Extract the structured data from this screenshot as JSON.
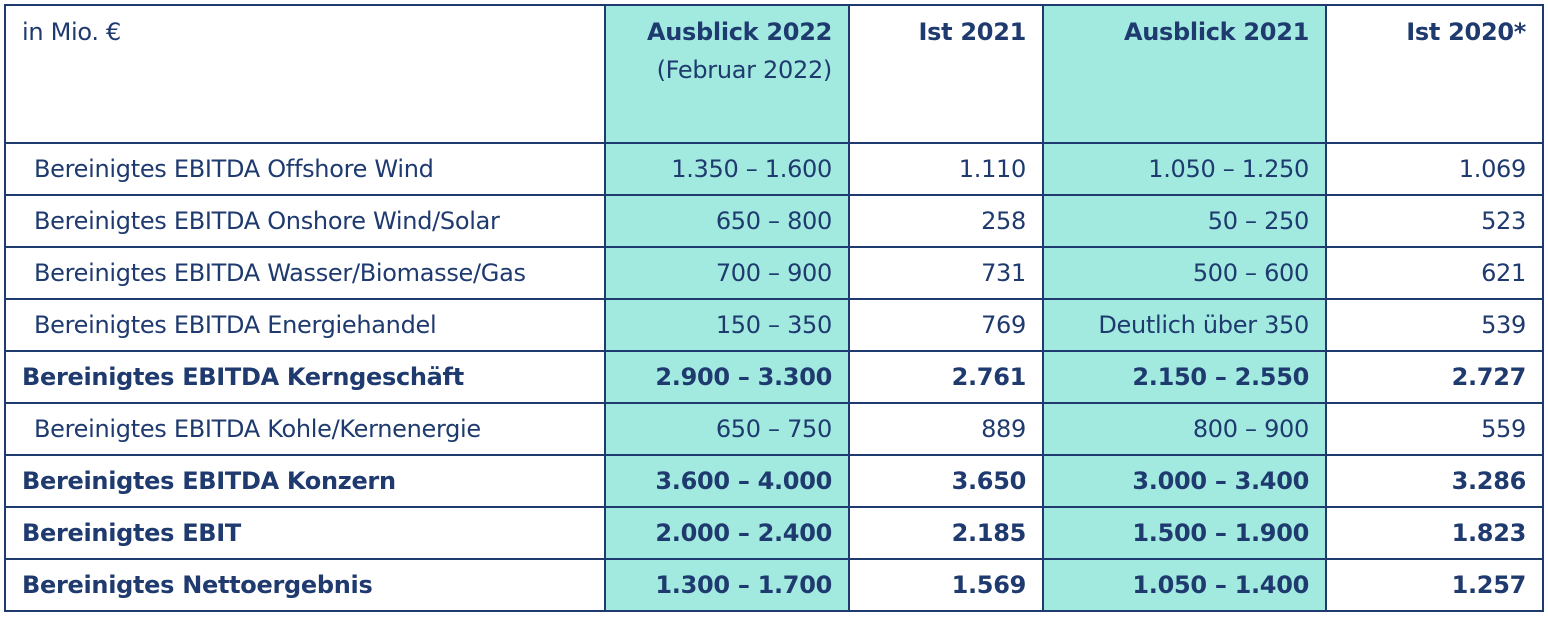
{
  "table": {
    "columns": [
      {
        "title": "in Mio. €"
      },
      {
        "title": "Ausblick 2022",
        "subtitle": "(Februar 2022)",
        "highlight": true
      },
      {
        "title": "Ist 2021"
      },
      {
        "title": "Ausblick 2021",
        "highlight": true
      },
      {
        "title": "Ist 2020*"
      }
    ],
    "rows": [
      {
        "label": "Bereinigtes EBITDA Offshore Wind",
        "cells": [
          "1.350 – 1.600",
          "1.110",
          "1.050 – 1.250",
          "1.069"
        ],
        "bold": false
      },
      {
        "label": "Bereinigtes EBITDA Onshore Wind/Solar",
        "cells": [
          "650 – 800",
          "258",
          "50 – 250",
          "523"
        ],
        "bold": false
      },
      {
        "label": "Bereinigtes EBITDA Wasser/Biomasse/Gas",
        "cells": [
          "700 – 900",
          "731",
          "500 – 600",
          "621"
        ],
        "bold": false
      },
      {
        "label": "Bereinigtes EBITDA Energiehandel",
        "cells": [
          "150 – 350",
          "769",
          "Deutlich über 350",
          "539"
        ],
        "bold": false
      },
      {
        "label": "Bereinigtes EBITDA Kerngeschäft",
        "cells": [
          "2.900 – 3.300",
          "2.761",
          "2.150 – 2.550",
          "2.727"
        ],
        "bold": true
      },
      {
        "label": "Bereinigtes EBITDA Kohle/Kernenergie",
        "cells": [
          "650 – 750",
          "889",
          "800 – 900",
          "559"
        ],
        "bold": false
      },
      {
        "label": "Bereinigtes EBITDA Konzern",
        "cells": [
          "3.600 – 4.000",
          "3.650",
          "3.000 – 3.400",
          "3.286"
        ],
        "bold": true
      },
      {
        "label": "Bereinigtes EBIT",
        "cells": [
          "2.000 – 2.400",
          "2.185",
          "1.500 – 1.900",
          "1.823"
        ],
        "bold": true
      },
      {
        "label": "Bereinigtes Nettoergebnis",
        "cells": [
          "1.300 – 1.700",
          "1.569",
          "1.050 – 1.400",
          "1.257"
        ],
        "bold": true
      }
    ]
  }
}
